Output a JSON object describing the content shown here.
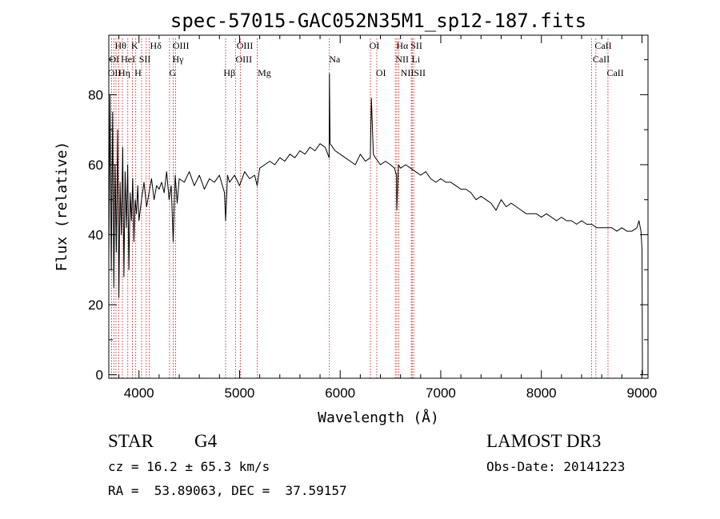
{
  "chart_data": {
    "type": "line",
    "title": "spec-57015-GAC052N35M1_sp12-187.fits",
    "xlabel": "Wavelength (Å)",
    "ylabel": "Flux (relative)",
    "xlim": [
      3700,
      9060
    ],
    "ylim": [
      -1,
      97
    ],
    "xticks": [
      4000,
      5000,
      6000,
      7000,
      8000,
      9000
    ],
    "xtick_labels": [
      "4000",
      "5000",
      "6000",
      "7000",
      "8000",
      "9000"
    ],
    "yticks": [
      0,
      20,
      40,
      60,
      80
    ],
    "ytick_labels": [
      "0",
      "20",
      "40",
      "60",
      "80"
    ],
    "series": [
      {
        "name": "flux",
        "x": [
          3700,
          3712,
          3725,
          3738,
          3750,
          3762,
          3775,
          3788,
          3800,
          3812,
          3825,
          3838,
          3850,
          3862,
          3875,
          3888,
          3900,
          3912,
          3925,
          3938,
          3950,
          3962,
          3975,
          3988,
          4000,
          4025,
          4050,
          4075,
          4100,
          4125,
          4150,
          4175,
          4200,
          4225,
          4250,
          4275,
          4300,
          4320,
          4340,
          4360,
          4380,
          4400,
          4450,
          4500,
          4550,
          4600,
          4650,
          4700,
          4750,
          4800,
          4850,
          4861,
          4880,
          4900,
          4950,
          5000,
          5050,
          5100,
          5150,
          5175,
          5200,
          5250,
          5300,
          5350,
          5400,
          5450,
          5500,
          5550,
          5600,
          5650,
          5700,
          5750,
          5800,
          5850,
          5890,
          5893,
          5900,
          5950,
          6000,
          6050,
          6100,
          6150,
          6200,
          6250,
          6300,
          6310,
          6330,
          6350,
          6400,
          6450,
          6500,
          6540,
          6560,
          6563,
          6580,
          6600,
          6650,
          6700,
          6750,
          6800,
          6850,
          6900,
          6950,
          7000,
          7050,
          7100,
          7150,
          7200,
          7250,
          7300,
          7350,
          7400,
          7450,
          7500,
          7550,
          7600,
          7650,
          7700,
          7750,
          7800,
          7850,
          7900,
          7950,
          8000,
          8050,
          8100,
          8150,
          8200,
          8250,
          8300,
          8350,
          8400,
          8450,
          8500,
          8550,
          8600,
          8650,
          8700,
          8750,
          8800,
          8850,
          8900,
          8950,
          8970,
          8990,
          9000,
          9005
        ],
        "values": [
          32,
          80,
          30,
          75,
          25,
          60,
          35,
          70,
          22,
          55,
          40,
          65,
          28,
          58,
          42,
          60,
          30,
          52,
          44,
          56,
          38,
          50,
          46,
          54,
          44,
          50,
          55,
          48,
          52,
          56,
          50,
          54,
          53,
          55,
          52,
          58,
          50,
          54,
          38,
          57,
          49,
          56,
          55,
          58,
          54,
          57,
          53,
          56,
          55,
          57,
          52,
          44,
          57,
          55,
          57,
          54,
          58,
          56,
          57,
          54,
          59,
          60,
          61,
          60,
          62,
          61,
          63,
          62,
          64,
          63,
          65,
          64,
          66,
          65,
          62,
          86,
          66,
          64,
          63,
          62,
          61,
          60,
          63,
          61,
          62,
          79,
          63,
          62,
          60,
          61,
          60,
          59,
          57,
          47,
          60,
          59,
          60,
          59,
          58,
          57,
          58,
          56,
          55,
          56,
          55,
          55,
          54,
          53,
          53,
          52,
          50,
          51,
          50,
          49,
          47,
          50,
          48,
          49,
          48,
          47,
          46,
          46,
          46,
          45,
          46,
          45,
          44,
          45,
          44,
          44,
          43,
          44,
          43,
          43,
          42,
          42,
          42,
          42,
          41,
          42,
          41,
          41,
          42,
          44,
          41,
          36,
          0
        ]
      }
    ],
    "lines": [
      {
        "x": 3727,
        "top": "OII",
        "bottom": "OII"
      },
      {
        "x": 3750,
        "top": "Hθ",
        "bottom": ""
      },
      {
        "x": 3771,
        "top": "",
        "bottom": ""
      },
      {
        "x": 3798,
        "top": "Hθ",
        "bottom": "OII"
      },
      {
        "x": 3835,
        "top": "Hη",
        "bottom": "Hη"
      },
      {
        "x": 3889,
        "top": "HeI",
        "bottom": ""
      },
      {
        "x": 3934,
        "top": "K",
        "bottom": ""
      },
      {
        "x": 3968,
        "top": "",
        "bottom": "H"
      },
      {
        "x": 4026,
        "top": "HeI",
        "bottom": ""
      },
      {
        "x": 4072,
        "top": "SII",
        "bottom": ""
      },
      {
        "x": 4102,
        "top": "Hδ",
        "bottom": ""
      },
      {
        "x": 4304,
        "top": "",
        "bottom": "G"
      },
      {
        "x": 4340,
        "top": "OIII",
        "bottom": "Hγ"
      },
      {
        "x": 4363,
        "top": "OIII",
        "bottom": ""
      },
      {
        "x": 4861,
        "top": "",
        "bottom": "Hβ"
      },
      {
        "x": 4959,
        "top": "OIII",
        "bottom": "OIII"
      },
      {
        "x": 5007,
        "top": "OIII",
        "bottom": "OIII"
      },
      {
        "x": 5175,
        "top": "",
        "bottom": "Mg"
      },
      {
        "x": 5893,
        "top": "",
        "bottom": "Na"
      },
      {
        "x": 6300,
        "top": "OI",
        "bottom": "OI"
      },
      {
        "x": 6364,
        "top": "",
        "bottom": "OI"
      },
      {
        "x": 6548,
        "top": "",
        "bottom": "NII"
      },
      {
        "x": 6563,
        "top": "Hα",
        "bottom": ""
      },
      {
        "x": 6583,
        "top": "",
        "bottom": "NII"
      },
      {
        "x": 6707,
        "top": "SII",
        "bottom": "Li"
      },
      {
        "x": 6716,
        "top": "",
        "bottom": "SII"
      },
      {
        "x": 6731,
        "top": "SII",
        "bottom": "SII"
      },
      {
        "x": 8498,
        "top": "CaII",
        "bottom": ""
      },
      {
        "x": 8542,
        "top": "CaII",
        "bottom": "CaII"
      },
      {
        "x": 8662,
        "top": "",
        "bottom": "CaII"
      }
    ],
    "line_labels": [
      {
        "text": "Hθ",
        "x": 3760,
        "row": 1
      },
      {
        "text": "K",
        "x": 3923,
        "row": 1
      },
      {
        "text": "Hδ",
        "x": 4110,
        "row": 1
      },
      {
        "text": "OIII",
        "x": 4335,
        "row": 1
      },
      {
        "text": "OIII",
        "x": 4970,
        "row": 1
      },
      {
        "text": "OI",
        "x": 6290,
        "row": 1
      },
      {
        "text": "Hα",
        "x": 6558,
        "row": 1
      },
      {
        "text": "SII",
        "x": 6700,
        "row": 1
      },
      {
        "text": "CaII",
        "x": 8530,
        "row": 1
      },
      {
        "text": "OI",
        "x": 3703,
        "row": 2
      },
      {
        "text": "HeI",
        "x": 3820,
        "row": 2
      },
      {
        "text": "SII",
        "x": 4000,
        "row": 2
      },
      {
        "text": "Hγ",
        "x": 4332,
        "row": 2
      },
      {
        "text": "OIII",
        "x": 4960,
        "row": 2
      },
      {
        "text": "Na",
        "x": 5890,
        "row": 2
      },
      {
        "text": "NII",
        "x": 6550,
        "row": 2
      },
      {
        "text": "Li",
        "x": 6710,
        "row": 2
      },
      {
        "text": "CaII",
        "x": 8510,
        "row": 2
      },
      {
        "text": "OII",
        "x": 3690,
        "row": 3
      },
      {
        "text": "Hη",
        "x": 3795,
        "row": 3
      },
      {
        "text": "H",
        "x": 3955,
        "row": 3
      },
      {
        "text": "G",
        "x": 4300,
        "row": 3
      },
      {
        "text": "Hβ",
        "x": 4840,
        "row": 3
      },
      {
        "text": "Mg",
        "x": 5180,
        "row": 3
      },
      {
        "text": "OI",
        "x": 6355,
        "row": 3
      },
      {
        "text": "NIISII",
        "x": 6600,
        "row": 3
      },
      {
        "text": "CaII",
        "x": 8650,
        "row": 3
      }
    ],
    "colors": {
      "spectrum": "#000000",
      "line_marker": "#cc0000",
      "axis": "#000000"
    }
  },
  "info": {
    "object_class": "STAR",
    "subclass": "G4",
    "survey": "LAMOST DR3",
    "cz": "cz = 16.2 ± 65.3 km/s",
    "obs_date": "Obs-Date: 20141223",
    "coords": "RA =  53.89063, DEC =  37.59157"
  }
}
